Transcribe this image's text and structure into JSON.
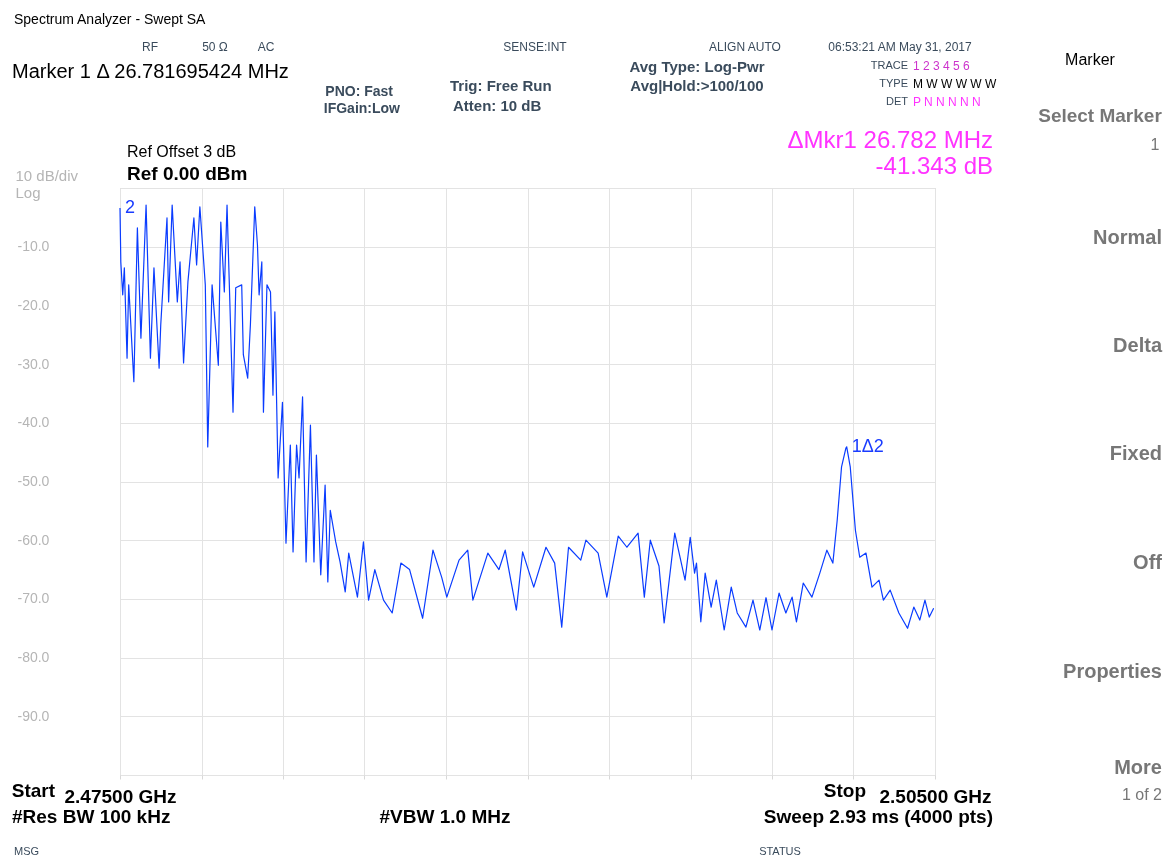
{
  "chart_data": {
    "type": "line",
    "title": "Spectrum Analyzer - Swept SA",
    "x": [
      2.475,
      2.47503,
      2.4751,
      2.47516,
      2.47526,
      2.47532,
      2.47551,
      2.47564,
      2.47577,
      2.47596,
      2.47612,
      2.47625,
      2.47644,
      2.4765,
      2.47673,
      2.47679,
      2.47692,
      2.47711,
      2.47721,
      2.47734,
      2.4775,
      2.47772,
      2.47782,
      2.47794,
      2.47814,
      2.47823,
      2.47839,
      2.47862,
      2.47871,
      2.47884,
      2.47894,
      2.47916,
      2.47926,
      2.47948,
      2.47954,
      2.4797,
      2.4798,
      2.47996,
      2.48006,
      2.48012,
      2.48022,
      2.48028,
      2.48041,
      2.48054,
      2.48063,
      2.4807,
      2.48082,
      2.48098,
      2.48111,
      2.48127,
      2.48137,
      2.4815,
      2.48159,
      2.48172,
      2.48185,
      2.48201,
      2.48214,
      2.48223,
      2.48239,
      2.48255,
      2.48265,
      2.48274,
      2.48294,
      2.4831,
      2.48329,
      2.48342,
      2.48374,
      2.48396,
      2.48415,
      2.48438,
      2.4847,
      2.48502,
      2.48534,
      2.48566,
      2.48614,
      2.48652,
      2.48684,
      2.48703,
      2.48748,
      2.4878,
      2.48799,
      2.48854,
      2.48895,
      2.48918,
      2.48959,
      2.48982,
      2.49023,
      2.49068,
      2.491,
      2.49126,
      2.49151,
      2.49196,
      2.49215,
      2.4926,
      2.49292,
      2.49334,
      2.49366,
      2.49407,
      2.4943,
      2.49452,
      2.49484,
      2.49503,
      2.49542,
      2.4958,
      2.49599,
      2.49615,
      2.49622,
      2.49638,
      2.49654,
      2.49676,
      2.49695,
      2.49724,
      2.4975,
      2.49772,
      2.49804,
      2.4983,
      2.49855,
      2.49878,
      2.499,
      2.49926,
      2.49951,
      2.49974,
      2.4999,
      2.50015,
      2.50047,
      2.50076,
      2.50102,
      2.50124,
      2.5014,
      2.50156,
      2.50172,
      2.50175,
      2.50188,
      2.50198,
      2.50207,
      2.50223,
      2.50246,
      2.50268,
      2.50294,
      2.5031,
      2.50335,
      2.50367,
      2.50399,
      2.50422,
      2.50444,
      2.50463,
      2.50479,
      2.50495
    ],
    "series": [
      {
        "color": "#0a3cff",
        "values": [
          -3.4,
          -12.6,
          -18.2,
          -13.6,
          -29,
          -16.5,
          -33,
          -6.8,
          -25.6,
          -2.9,
          -29,
          -13.6,
          -30.7,
          -23.3,
          -5.1,
          -19.4,
          -2.9,
          -19.4,
          -12.6,
          -29.8,
          -16,
          -5.1,
          -13.1,
          -3.2,
          -16.5,
          -44.1,
          -16.5,
          -30.2,
          -5.8,
          -17.7,
          -2.9,
          -38.2,
          -17,
          -16.5,
          -28.4,
          -32.4,
          -23.3,
          -3.2,
          -9.7,
          -18.2,
          -12.6,
          -38.2,
          -16.5,
          -17.7,
          -35.3,
          -21.1,
          -49.4,
          -36.5,
          -60.5,
          -43.8,
          -62,
          -43.8,
          -49.4,
          -35.6,
          -63.7,
          -40.4,
          -63.7,
          -45.5,
          -65.9,
          -50.6,
          -67.1,
          -54.9,
          -60.3,
          -63.7,
          -68.8,
          -62.2,
          -69.7,
          -60.3,
          -70.2,
          -65,
          -70.2,
          -72.4,
          -63.9,
          -65,
          -73.3,
          -61.7,
          -66.3,
          -69.7,
          -63.4,
          -61.7,
          -70.2,
          -62.2,
          -65,
          -61.7,
          -71.9,
          -62,
          -68,
          -61.2,
          -63.9,
          -74.8,
          -61.2,
          -63.4,
          -60,
          -62.2,
          -69.7,
          -59.3,
          -61.2,
          -58.8,
          -69.7,
          -60,
          -64.4,
          -74.1,
          -58.8,
          -66.8,
          -59.5,
          -65.6,
          -63.9,
          -73.9,
          -65.6,
          -71.4,
          -66.8,
          -75.3,
          -68,
          -72.4,
          -74.8,
          -70.2,
          -75.3,
          -69.8,
          -75.3,
          -69,
          -72.4,
          -69.7,
          -73.9,
          -67.3,
          -69.7,
          -65.6,
          -61.7,
          -63.9,
          -56.6,
          -47.5,
          -44.3,
          -44.1,
          -47.5,
          -53.2,
          -58.3,
          -62.9,
          -62.2,
          -68,
          -66.8,
          -70.2,
          -68.5,
          -72.4,
          -75,
          -71.4,
          -73.6,
          -70.2,
          -73.1,
          -71.6
        ]
      }
    ],
    "xlim": [
      2.475,
      2.505
    ],
    "xticks": [
      {
        "value": 2.475,
        "label": "2.47500 GHz"
      },
      {
        "value": 2.478,
        "label": null
      },
      {
        "value": 2.481,
        "label": null
      },
      {
        "value": 2.484,
        "label": null
      },
      {
        "value": 2.487,
        "label": null
      },
      {
        "value": 2.49,
        "label": null
      },
      {
        "value": 2.493,
        "label": null
      },
      {
        "value": 2.496,
        "label": null
      },
      {
        "value": 2.499,
        "label": null
      },
      {
        "value": 2.502,
        "label": null
      },
      {
        "value": 2.505,
        "label": "2.50500 GHz"
      }
    ],
    "ylim": [
      -100,
      0
    ],
    "ylabel": "10 dB/div\nLog",
    "yticks": [
      {
        "value": 0,
        "label": null
      },
      {
        "value": -10,
        "label": "-10.0"
      },
      {
        "value": -20,
        "label": "-20.0"
      },
      {
        "value": -30,
        "label": "-30.0"
      },
      {
        "value": -40,
        "label": "-40.0"
      },
      {
        "value": -50,
        "label": "-50.0"
      },
      {
        "value": -60,
        "label": "-60.0"
      },
      {
        "value": -70,
        "label": "-70.0"
      },
      {
        "value": -80,
        "label": "-80.0"
      },
      {
        "value": -90,
        "label": "-90.0"
      },
      {
        "value": -100,
        "label": null
      }
    ],
    "grid": true,
    "annotations": [
      {
        "text": "1Δ2",
        "x": 2.50175,
        "y": -44.1
      },
      {
        "text": "2",
        "x": 2.475,
        "y": -3.4
      },
      "Marker 1 Δ 26.781695424 MHz",
      "RF",
      "50 Ω",
      "AC",
      "SENSE:INT",
      "ALIGN AUTO",
      "06:53:21 AM May 31, 2017",
      "PNO: Fast",
      "IFGain:Low",
      "Trig: Free Run",
      "Atten: 10 dB",
      "Avg Type: Log-Pwr",
      "Avg|Hold:>100/100",
      "TRACE",
      "1 2 3 4 5 6",
      "TYPE",
      "M W W W W W",
      "DET",
      "P N N N N N",
      "Ref Offset 3 dB",
      "Ref 0.00 dBm",
      "Start",
      "Stop",
      "ΔMkr1 26.782 MHz",
      "-41.343 dB",
      "#Res BW 100 kHz",
      "#VBW 1.0 MHz",
      "Sweep  2.93 ms (4000 pts)",
      "MSG",
      "STATUS",
      "Marker",
      "Select Marker",
      "1",
      "Normal",
      "Delta",
      "Fixed",
      "Off",
      "Properties",
      "More",
      "1 of 2"
    ]
  }
}
